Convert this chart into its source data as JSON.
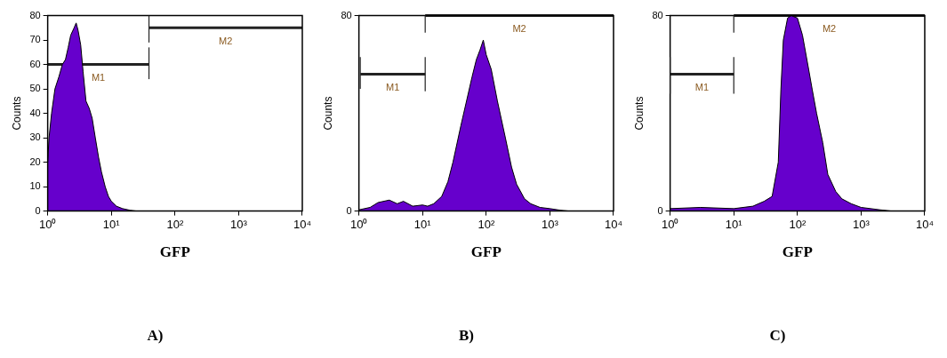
{
  "chart_data": [
    {
      "type": "area",
      "title": "A)",
      "xlabel": "GFP",
      "ylabel": "Counts",
      "log": "x",
      "grid": false,
      "legend": false,
      "xlim": [
        1,
        10000
      ],
      "xticks": [
        {
          "value": 1,
          "label": "10⁰"
        },
        {
          "value": 10,
          "label": "10¹"
        },
        {
          "value": 100,
          "label": "10²"
        },
        {
          "value": 1000,
          "label": "10³"
        },
        {
          "value": 10000,
          "label": "10⁴"
        }
      ],
      "ylim": [
        0,
        80
      ],
      "yticks": [
        0,
        10,
        20,
        30,
        40,
        50,
        60,
        70,
        80
      ],
      "series": [
        {
          "color": "#6600cc",
          "x": [
            1,
            1.05,
            1.15,
            1.3,
            1.5,
            1.7,
            1.9,
            2.1,
            2.3,
            2.6,
            2.8,
            3.0,
            3.3,
            3.6,
            4.0,
            4.5,
            5.0,
            5.6,
            6.3,
            7.0,
            8.0,
            9,
            10,
            12,
            15,
            20,
            25,
            10000
          ],
          "values": [
            20,
            30,
            40,
            50,
            55,
            60,
            62,
            67,
            72,
            75,
            77,
            74,
            68,
            57,
            45,
            42,
            38,
            30,
            22,
            16,
            10,
            6,
            4,
            2,
            1,
            0.3,
            0,
            0
          ]
        },
        {
          "type": "line",
          "name": "M1",
          "color": "#222222",
          "x": [
            1,
            39
          ],
          "values": [
            60,
            60
          ],
          "errors": [
            null,
            [
              54,
              67
            ]
          ]
        },
        {
          "type": "line",
          "name": "M2",
          "color": "#222222",
          "x": [
            39,
            10000
          ],
          "values": [
            75,
            75
          ],
          "errors": [
            [
              69,
              80
            ],
            null
          ]
        }
      ]
    },
    {
      "type": "area",
      "title": "B)",
      "xlabel": "GFP",
      "ylabel": "Counts",
      "log": "x",
      "grid": false,
      "legend": false,
      "xlim": [
        1,
        10000
      ],
      "xticks": [
        {
          "value": 1,
          "label": "10⁰"
        },
        {
          "value": 10,
          "label": "10¹"
        },
        {
          "value": 100,
          "label": "10²"
        },
        {
          "value": 1000,
          "label": "10³"
        },
        {
          "value": 10000,
          "label": "10⁴"
        }
      ],
      "ylim": [
        0,
        80
      ],
      "yticks": [
        0,
        80
      ],
      "series": [
        {
          "color": "#6600cc",
          "x": [
            1,
            1.5,
            2,
            3,
            4,
            5,
            7,
            10,
            12,
            15,
            20,
            25,
            30,
            40,
            50,
            60,
            70,
            80,
            90,
            100,
            120,
            150,
            200,
            250,
            300,
            400,
            500,
            700,
            1000,
            1500,
            2000,
            10000
          ],
          "values": [
            0.5,
            1.5,
            3.5,
            4.5,
            3,
            4,
            2,
            2.5,
            2,
            3,
            6,
            12,
            20,
            35,
            46,
            55,
            62,
            66,
            70,
            64,
            58,
            45,
            30,
            18,
            11,
            5,
            3,
            1.5,
            1,
            0.3,
            0,
            0
          ]
        },
        {
          "type": "line",
          "name": "M1",
          "color": "#222222",
          "x": [
            1.05,
            11
          ],
          "values": [
            56,
            56
          ],
          "errors": [
            [
              50,
              63
            ],
            [
              49,
              63
            ]
          ]
        },
        {
          "type": "line",
          "name": "M2",
          "color": "#222222",
          "x": [
            11,
            10000
          ],
          "values": [
            80,
            80
          ],
          "errors": [
            [
              73,
              80
            ],
            null
          ]
        }
      ]
    },
    {
      "type": "area",
      "title": "C)",
      "xlabel": "GFP",
      "ylabel": "Counts",
      "log": "x",
      "grid": false,
      "legend": false,
      "xlim": [
        1,
        10000
      ],
      "xticks": [
        {
          "value": 1,
          "label": "10⁰"
        },
        {
          "value": 10,
          "label": "10¹"
        },
        {
          "value": 100,
          "label": "10²"
        },
        {
          "value": 1000,
          "label": "10³"
        },
        {
          "value": 10000,
          "label": "10⁴"
        }
      ],
      "ylim": [
        0,
        80
      ],
      "yticks": [
        0,
        80
      ],
      "series": [
        {
          "color": "#6600cc",
          "x": [
            1,
            3,
            10,
            20,
            30,
            40,
            50,
            55,
            60,
            70,
            80,
            100,
            120,
            150,
            170,
            200,
            250,
            300,
            400,
            500,
            700,
            1000,
            2000,
            3000,
            10000
          ],
          "values": [
            1,
            1.5,
            1,
            2,
            4,
            6,
            20,
            50,
            70,
            79,
            80,
            79,
            72,
            58,
            50,
            40,
            28,
            15,
            8,
            5,
            3,
            1.5,
            0.5,
            0,
            0
          ]
        },
        {
          "type": "line",
          "name": "M1",
          "color": "#222222",
          "x": [
            1,
            10
          ],
          "values": [
            56,
            56
          ],
          "errors": [
            [
              48,
              63
            ],
            [
              48,
              63
            ]
          ]
        },
        {
          "type": "line",
          "name": "M2",
          "color": "#222222",
          "x": [
            10,
            10000
          ],
          "values": [
            80,
            80
          ],
          "errors": [
            [
              73,
              80
            ],
            null
          ]
        }
      ]
    }
  ]
}
